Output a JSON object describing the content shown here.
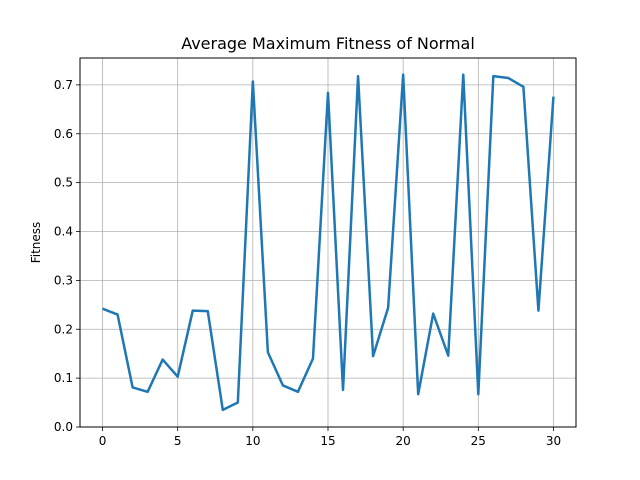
{
  "chart_data": {
    "type": "line",
    "title": "Average Maximum Fitness of Normal",
    "xlabel": "",
    "ylabel": "Fitness",
    "xlim": [
      -1.5,
      31.5
    ],
    "ylim": [
      0,
      0.755
    ],
    "x_ticks": [
      0,
      5,
      10,
      15,
      20,
      25,
      30
    ],
    "x_tick_labels": [
      "0",
      "5",
      "10",
      "15",
      "20",
      "25",
      "30"
    ],
    "y_ticks": [
      0.0,
      0.1,
      0.2,
      0.3,
      0.4,
      0.5,
      0.6,
      0.7
    ],
    "y_tick_labels": [
      "0.0",
      "0.1",
      "0.2",
      "0.3",
      "0.4",
      "0.5",
      "0.6",
      "0.7"
    ],
    "grid": true,
    "series": [
      {
        "color": "#1f77b4",
        "x": [
          0,
          1,
          2,
          3,
          4,
          5,
          6,
          7,
          8,
          9,
          10,
          11,
          12,
          13,
          14,
          15,
          16,
          17,
          18,
          19,
          20,
          21,
          22,
          23,
          24,
          25,
          26,
          27,
          28,
          29,
          30
        ],
        "values": [
          0.242,
          0.23,
          0.081,
          0.072,
          0.138,
          0.103,
          0.238,
          0.237,
          0.035,
          0.05,
          0.707,
          0.153,
          0.085,
          0.072,
          0.14,
          0.684,
          0.076,
          0.718,
          0.145,
          0.244,
          0.721,
          0.067,
          0.232,
          0.146,
          0.721,
          0.067,
          0.718,
          0.714,
          0.696,
          0.238,
          0.676
        ]
      }
    ]
  }
}
